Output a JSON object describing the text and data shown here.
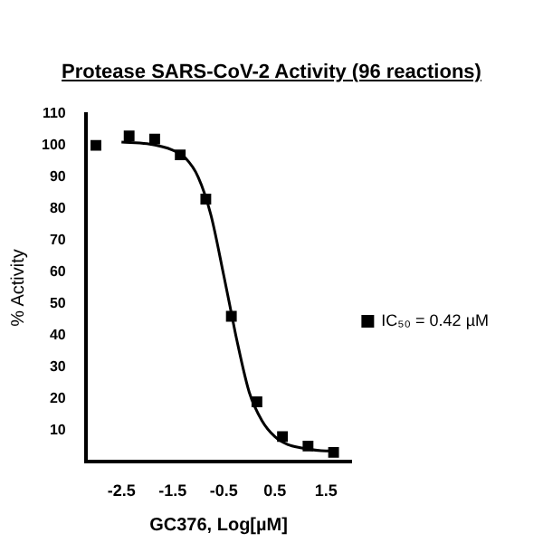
{
  "chart_data": {
    "type": "scatter",
    "title": "Protease SARS-CoV-2 Activity (96 reactions)",
    "xlabel": "GC376, Log[µM]",
    "ylabel": "% Activity",
    "xlim": [
      -3.2,
      2.0
    ],
    "xticks": [
      -2.5,
      -1.5,
      -0.5,
      0.5,
      1.5
    ],
    "ylim": [
      0,
      110
    ],
    "yticks": [
      10,
      20,
      30,
      40,
      50,
      60,
      70,
      80,
      90,
      100,
      110
    ],
    "grid": false,
    "legend": "right",
    "marker": "square",
    "series": [
      {
        "name": "IC₅₀ = 0.42 µM",
        "color": "#000000",
        "x": [
          -3.0,
          -2.35,
          -1.85,
          -1.35,
          -0.85,
          -0.35,
          0.15,
          0.65,
          1.15,
          1.65
        ],
        "values": [
          100,
          103,
          102,
          97,
          83,
          46,
          19,
          8,
          5,
          3
        ]
      },
      {
        "type": "line",
        "color": "#000000",
        "marker": "none",
        "x": [
          -2.5,
          -2.0,
          -1.5,
          -1.25,
          -1.0,
          -0.75,
          -0.5,
          -0.35,
          -0.25,
          0.0,
          0.25,
          0.5,
          0.75,
          1.0,
          1.5,
          1.6
        ],
        "values": [
          101,
          100.5,
          98.5,
          96,
          90,
          78,
          59,
          47,
          39,
          22,
          13,
          8,
          5.5,
          4.5,
          3.5,
          3.5
        ]
      }
    ]
  }
}
